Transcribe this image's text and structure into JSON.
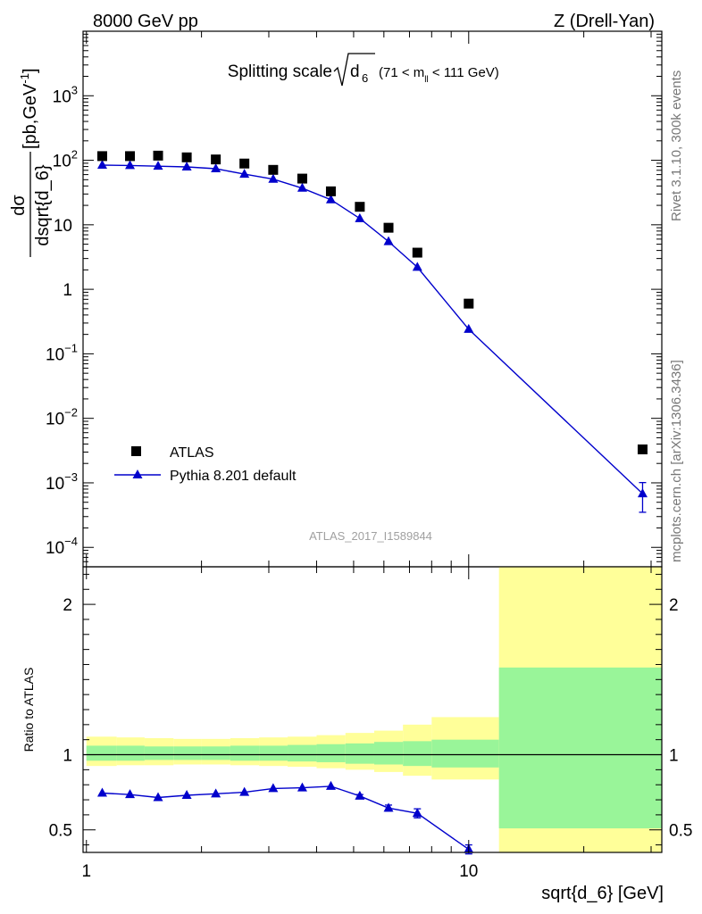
{
  "header": {
    "left": "8000 GeV pp",
    "right": "Z (Drell-Yan)"
  },
  "side": {
    "rivet": "Rivet 3.1.10,  300k events",
    "url": "mcplots.cern.ch [arXiv:1306.3436]"
  },
  "watermark": "ATLAS_2017_I1589844",
  "colors": {
    "mc": "#0000cc",
    "band_inner": "#99f599",
    "band_outer": "#ffff99",
    "data": "#000000"
  },
  "chart_data": [
    {
      "type": "scatter",
      "panel": "main",
      "title": "Splitting scale",
      "title_math": "d",
      "title_sub": "6",
      "title_cut_left": "(71 < m",
      "title_cut_sub": "ll",
      "title_cut_right": " < 111 GeV)",
      "ylabel_num": "dσ",
      "ylabel_den": "dsqrt{d_6}",
      "ylabel_units": "[pb,GeV",
      "ylabel_units_sup": "-1",
      "ylabel_units_close": "]",
      "yscale": "log",
      "xscale": "log",
      "xlim": [
        0.98,
        32
      ],
      "ylim": [
        5e-05,
        10000
      ],
      "yticks": [
        {
          "v": 0.0001,
          "base": "10",
          "exp": "−4"
        },
        {
          "v": 0.001,
          "base": "10",
          "exp": "−3"
        },
        {
          "v": 0.01,
          "base": "10",
          "exp": "−2"
        },
        {
          "v": 0.1,
          "base": "10",
          "exp": "−1"
        },
        {
          "v": 1,
          "base": "1",
          "exp": ""
        },
        {
          "v": 10,
          "base": "10",
          "exp": ""
        },
        {
          "v": 100,
          "base": "10",
          "exp": "2"
        },
        {
          "v": 1000,
          "base": "10",
          "exp": "3"
        }
      ],
      "legend": {
        "placement": "bottom-left",
        "entries": [
          "ATLAS",
          "Pythia 8.201 default"
        ]
      },
      "series": [
        {
          "name": "ATLAS",
          "marker": "square",
          "x": [
            1.1,
            1.3,
            1.54,
            1.83,
            2.18,
            2.59,
            3.08,
            3.67,
            4.36,
            5.19,
            6.17,
            7.34,
            10.0,
            28.5
          ],
          "y": [
            116,
            116,
            118,
            111,
            103,
            89,
            71,
            52,
            33,
            19,
            9.0,
            3.7,
            0.6,
            0.0033
          ]
        },
        {
          "name": "Pythia 8.201 default",
          "marker": "triangle",
          "x": [
            1.1,
            1.3,
            1.54,
            1.83,
            2.18,
            2.59,
            3.08,
            3.67,
            4.36,
            5.19,
            6.17,
            7.34,
            10.0,
            28.5
          ],
          "y": [
            84,
            83,
            81,
            79,
            74,
            61,
            51,
            37,
            24.5,
            12.5,
            5.5,
            2.2,
            0.24,
            0.00068
          ],
          "yerr_low": [
            0,
            0,
            0,
            0,
            0,
            0,
            0,
            0,
            0,
            0,
            0,
            0,
            0,
            0.00033
          ],
          "yerr_high": [
            0,
            0,
            0,
            0,
            0,
            0,
            0,
            0,
            0,
            0,
            0,
            0,
            0,
            0.00033
          ]
        }
      ]
    },
    {
      "type": "line",
      "panel": "ratio",
      "ylabel": "Ratio to ATLAS",
      "xlabel": "sqrt{d_6} [GeV]",
      "xscale": "log",
      "xlim": [
        0.98,
        32
      ],
      "ylim": [
        0.35,
        2.25
      ],
      "yticks": [
        {
          "v": 0.5,
          "label": "0.5"
        },
        {
          "v": 1,
          "label": "1"
        },
        {
          "v": 2,
          "label": "2"
        }
      ],
      "xticks": [
        {
          "v": 1,
          "label": "1"
        },
        {
          "v": 10,
          "label": "10"
        }
      ],
      "bands": {
        "edges": [
          1.0,
          1.2,
          1.42,
          1.69,
          2.0,
          2.38,
          2.83,
          3.36,
          4.0,
          4.76,
          5.66,
          6.73,
          8.0,
          12.0,
          32
        ],
        "inner_low": [
          0.96,
          0.96,
          0.965,
          0.965,
          0.965,
          0.96,
          0.96,
          0.955,
          0.95,
          0.94,
          0.935,
          0.925,
          0.915,
          0.51
        ],
        "inner_high": [
          1.06,
          1.06,
          1.055,
          1.055,
          1.055,
          1.06,
          1.06,
          1.065,
          1.07,
          1.075,
          1.085,
          1.09,
          1.1,
          1.58
        ],
        "outer_low": [
          0.925,
          0.93,
          0.93,
          0.935,
          0.935,
          0.93,
          0.925,
          0.92,
          0.91,
          0.9,
          0.885,
          0.86,
          0.835,
          0.35
        ],
        "outer_high": [
          1.12,
          1.115,
          1.11,
          1.105,
          1.105,
          1.11,
          1.115,
          1.12,
          1.13,
          1.145,
          1.16,
          1.2,
          1.25,
          2.25
        ]
      },
      "series": [
        {
          "name": "Pythia 8.201 default",
          "x": [
            1.1,
            1.3,
            1.54,
            1.83,
            2.18,
            2.59,
            3.08,
            3.67,
            4.36,
            5.19,
            6.17,
            7.34,
            10.0
          ],
          "y": [
            0.745,
            0.735,
            0.715,
            0.73,
            0.74,
            0.75,
            0.775,
            0.78,
            0.79,
            0.725,
            0.645,
            0.61,
            0.37
          ],
          "yerr": [
            0.005,
            0.005,
            0.005,
            0.005,
            0.005,
            0.005,
            0.005,
            0.005,
            0.005,
            0.01,
            0.02,
            0.03,
            0.03
          ]
        }
      ]
    }
  ]
}
